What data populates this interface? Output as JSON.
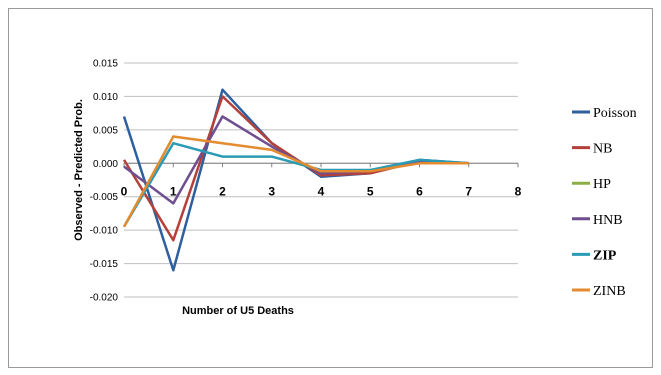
{
  "chart_data": {
    "type": "line",
    "title": "",
    "xlabel": "Number of U5 Deaths",
    "ylabel": "Observed - Predicted Prob.",
    "x": [
      0,
      1,
      2,
      3,
      4,
      5,
      6,
      7
    ],
    "xticks": [
      "0",
      "1",
      "2",
      "3",
      "4",
      "5",
      "6",
      "7",
      "8"
    ],
    "xlim": [
      0,
      8
    ],
    "yticks": [
      "0.015",
      "0.010",
      "0.005",
      "0.000",
      "-0.005",
      "-0.010",
      "-0.015",
      "-0.020"
    ],
    "ylim": [
      -0.02,
      0.015
    ],
    "grid": true,
    "legend_position": "right",
    "series": [
      {
        "name": "Poisson",
        "color": "#2E5F9E",
        "bold": false,
        "values": [
          0.007,
          -0.016,
          0.011,
          0.003,
          -0.002,
          -0.0015,
          0.0005,
          0.0
        ]
      },
      {
        "name": "NB",
        "color": "#B5403A",
        "bold": false,
        "values": [
          0.0005,
          -0.0115,
          0.01,
          0.003,
          -0.0018,
          -0.0015,
          0.0003,
          0.0
        ]
      },
      {
        "name": "HP",
        "color": "#8BAF45",
        "bold": false,
        "values": [
          null,
          null,
          null,
          null,
          null,
          null,
          null,
          null
        ]
      },
      {
        "name": "HNB",
        "color": "#6F4E8F",
        "bold": false,
        "values": [
          -0.0005,
          -0.006,
          0.007,
          0.0025,
          -0.0015,
          -0.0012,
          0.0003,
          0.0
        ]
      },
      {
        "name": "ZIP",
        "color": "#2A9BB4",
        "bold": true,
        "values": [
          -0.0095,
          0.003,
          0.001,
          0.001,
          -0.001,
          -0.001,
          0.0005,
          0.0
        ]
      },
      {
        "name": "ZINB",
        "color": "#E38B2E",
        "bold": false,
        "values": [
          -0.0095,
          0.004,
          0.003,
          0.002,
          -0.0012,
          -0.0012,
          0.0,
          0.0
        ]
      }
    ]
  }
}
